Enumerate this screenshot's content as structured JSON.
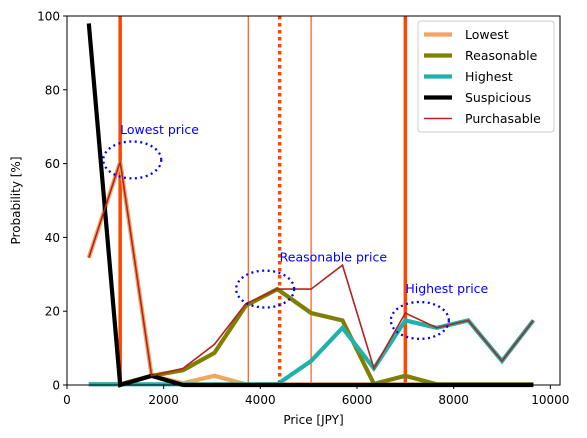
{
  "chart_data": {
    "type": "line",
    "xlabel": "Price [JPY]",
    "ylabel": "Probability [%]",
    "xlim": [
      0,
      10200
    ],
    "ylim": [
      0,
      100
    ],
    "xticks": [
      0,
      2000,
      4000,
      6000,
      8000,
      10000
    ],
    "yticks": [
      0,
      20,
      40,
      60,
      80,
      100
    ],
    "grid": false,
    "legend_position": "top-right",
    "series": [
      {
        "name": "Lowest",
        "color": "#f4a460",
        "x": [
          450,
          1100,
          1750,
          2400,
          3050,
          3700,
          4350,
          5050,
          5700,
          6350,
          7000,
          7650,
          8300,
          9000,
          9650
        ],
        "y": [
          34.5,
          60.5,
          2.5,
          0.5,
          2.5,
          0.2,
          0.2,
          0.2,
          0.2,
          0.2,
          0.2,
          0.2,
          0.2,
          0.2,
          0.2
        ]
      },
      {
        "name": "Reasonable",
        "color": "#808000",
        "x": [
          450,
          1100,
          1750,
          2400,
          3050,
          3700,
          4350,
          5050,
          5700,
          6350,
          7000,
          7650,
          8300,
          9000,
          9650
        ],
        "y": [
          0.2,
          0.2,
          2.5,
          4,
          8.7,
          21.5,
          26,
          19.5,
          17.5,
          0.3,
          2.5,
          0.2,
          0.2,
          0.2,
          0.2
        ]
      },
      {
        "name": "Highest",
        "color": "#20b2aa",
        "x": [
          450,
          1100,
          1750,
          2400,
          3050,
          3700,
          4350,
          5050,
          5700,
          6350,
          7000,
          7650,
          8300,
          9000,
          9650
        ],
        "y": [
          0.2,
          0.2,
          0.2,
          0.2,
          0.2,
          0.2,
          0.2,
          6.5,
          15.5,
          4.5,
          17.5,
          15.5,
          17.5,
          6.5,
          17.5
        ]
      },
      {
        "name": "Suspicious",
        "color": "#000000",
        "x": [
          450,
          1100,
          1750,
          2400,
          3050,
          3700,
          4350,
          5050,
          5700,
          6350,
          7000,
          7650,
          8300,
          9000,
          9650
        ],
        "y": [
          98,
          0,
          2.5,
          0,
          0,
          0,
          0,
          0,
          0,
          0,
          0,
          0,
          0,
          0,
          0
        ]
      },
      {
        "name": "Purchasable",
        "color": "#b22222",
        "x": [
          450,
          1100,
          1750,
          2400,
          3050,
          3700,
          4350,
          5050,
          5700,
          6350,
          7000,
          7650,
          8300,
          9000,
          9650
        ],
        "y": [
          34.5,
          60.5,
          2.5,
          4.5,
          11,
          22,
          26,
          26,
          32.5,
          4.5,
          19.5,
          15.5,
          17.5,
          6.5,
          17.5
        ]
      }
    ],
    "vertical_lines": [
      {
        "x": 1100,
        "color": "#ff4500",
        "style": "solid",
        "weight": "thick"
      },
      {
        "x": 7000,
        "color": "#ff4500",
        "style": "solid",
        "weight": "thick"
      },
      {
        "x": 4400,
        "color": "#ff4500",
        "style": "dotted",
        "weight": "thick"
      },
      {
        "x": 3750,
        "color": "#ff4500",
        "style": "solid",
        "weight": "thin"
      },
      {
        "x": 5050,
        "color": "#ff4500",
        "style": "solid",
        "weight": "thin"
      }
    ],
    "highlight_ellipses": [
      {
        "cx": 1350,
        "cy": 61,
        "rx": 600,
        "ry": 5,
        "color": "#0000ff"
      },
      {
        "cx": 4100,
        "cy": 26,
        "rx": 600,
        "ry": 5,
        "color": "#0000ff"
      },
      {
        "cx": 7300,
        "cy": 17.5,
        "rx": 600,
        "ry": 5,
        "color": "#0000ff"
      }
    ],
    "annotations": [
      {
        "text": "Lowest price",
        "x": 1100,
        "y": 68,
        "color": "#0000ff"
      },
      {
        "text": "Reasonable price",
        "x": 4400,
        "y": 33.5,
        "color": "#0000ff"
      },
      {
        "text": "Highest price",
        "x": 7000,
        "y": 25,
        "color": "#0000ff"
      }
    ]
  }
}
